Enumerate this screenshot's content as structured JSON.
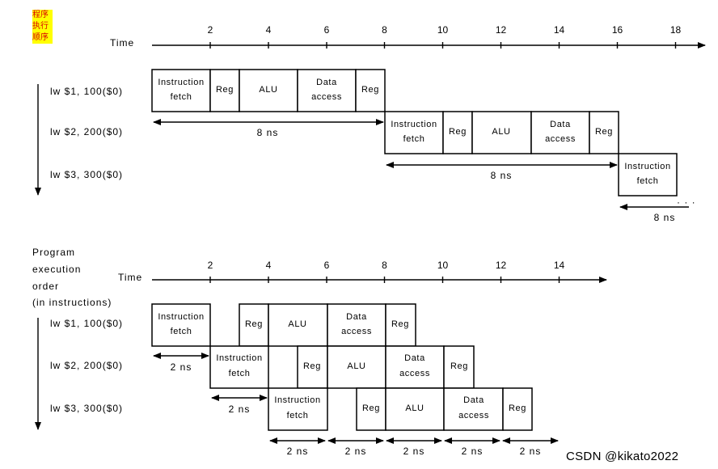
{
  "cn_note": [
    "程序",
    "执行",
    "顺序"
  ],
  "watermark": "CSDN @kikato2022",
  "arrowhead_color": "#000000",
  "note_bg_color": "#ffff00",
  "note_text_color": "#d80000",
  "top": {
    "time_label": "Time",
    "ticks": [
      "2",
      "4",
      "6",
      "8",
      "10",
      "12",
      "14",
      "16",
      "18"
    ],
    "instructions": [
      "lw $1, 100($0)",
      "lw $2, 200($0)",
      "lw $3, 300($0)"
    ],
    "dur_label": "8 ns",
    "ellipsis": "· · ·"
  },
  "bottom": {
    "order_label": [
      "Program",
      "execution",
      "order",
      "(in instructions)"
    ],
    "time_label": "Time",
    "ticks": [
      "2",
      "4",
      "6",
      "8",
      "10",
      "12",
      "14"
    ],
    "instructions": [
      "lw $1, 100($0)",
      "lw $2, 200($0)",
      "lw $3, 300($0)"
    ],
    "dur_label": "2 ns"
  },
  "stages": {
    "if": [
      "Instruction",
      "fetch"
    ],
    "reg": "Reg",
    "alu": "ALU",
    "mem": [
      "Data",
      "access"
    ]
  }
}
